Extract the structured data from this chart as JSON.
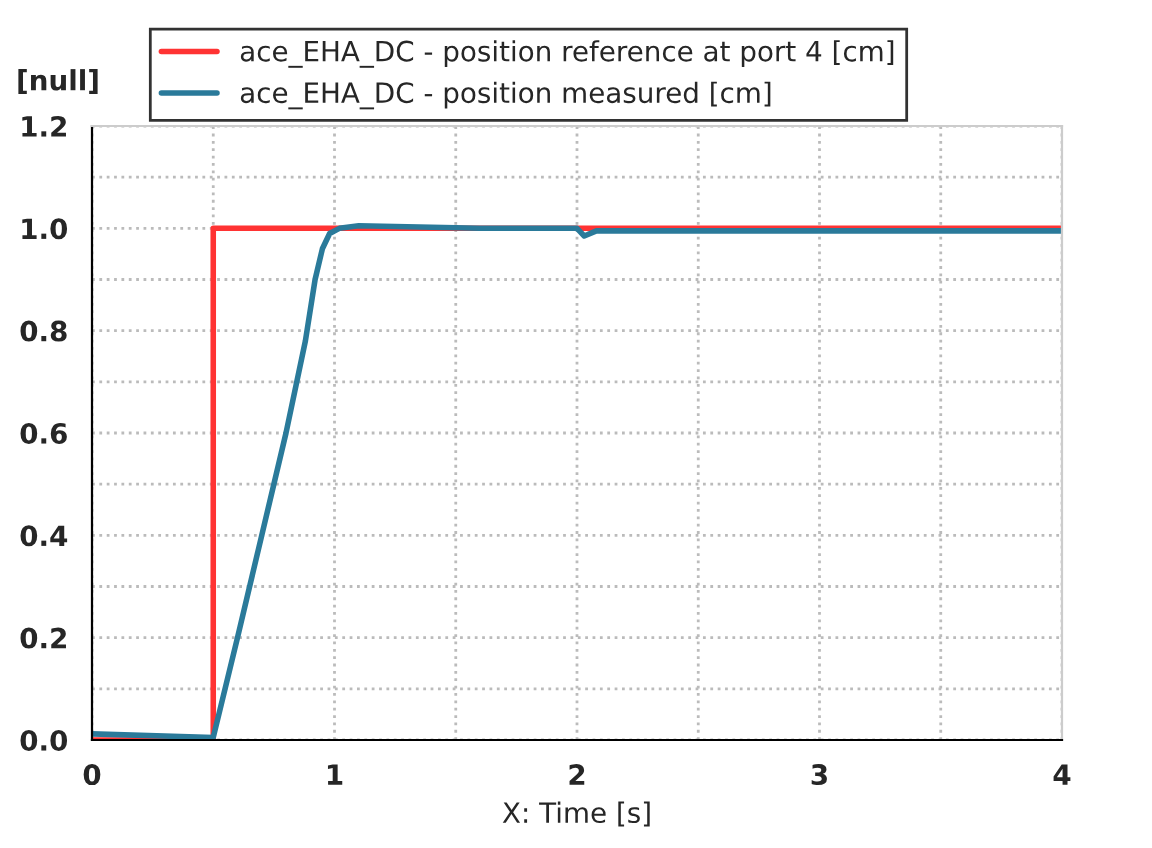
{
  "chart_data": {
    "type": "line",
    "xlabel": "X: Time [s]",
    "ylabel": "[null]",
    "xlim": [
      0,
      4
    ],
    "ylim": [
      0,
      1.2
    ],
    "xticks": [
      0,
      {
        "value": 0.5,
        "label": null
      },
      1,
      {
        "value": 1.5,
        "label": null
      },
      2,
      {
        "value": 2.5,
        "label": null
      },
      3,
      {
        "value": 3.5,
        "label": null
      },
      4
    ],
    "yticks": [
      {
        "value": 0,
        "label": "0.0"
      },
      {
        "value": 0.1,
        "label": null
      },
      {
        "value": 0.2,
        "label": "0.2"
      },
      {
        "value": 0.3,
        "label": null
      },
      {
        "value": 0.4,
        "label": "0.4"
      },
      {
        "value": 0.5,
        "label": null
      },
      {
        "value": 0.6,
        "label": "0.6"
      },
      {
        "value": 0.7,
        "label": null
      },
      {
        "value": 0.8,
        "label": "0.8"
      },
      {
        "value": 0.9,
        "label": null
      },
      {
        "value": 1.0,
        "label": "1.0"
      },
      {
        "value": 1.1,
        "label": null
      },
      {
        "value": 1.2,
        "label": "1.2"
      }
    ],
    "grid": true,
    "legend": "top",
    "line_style": "solid",
    "series": [
      {
        "name": "ace_EHA_DC - position reference at port 4 [cm]",
        "color": "#ff3333",
        "x": [
          0,
          0.5,
          0.5,
          4
        ],
        "values": [
          0,
          0,
          1,
          1
        ]
      },
      {
        "name": "ace_EHA_DC - position measured [cm]",
        "color": "#2a7a9a",
        "x": [
          0,
          0.5,
          0.6,
          0.7,
          0.8,
          0.88,
          0.92,
          0.95,
          0.98,
          1.02,
          1.1,
          1.3,
          1.6,
          2.0,
          2.03,
          2.08,
          2.2,
          3.0,
          4.0
        ],
        "values": [
          0.012,
          0.005,
          0.2,
          0.4,
          0.6,
          0.78,
          0.9,
          0.96,
          0.99,
          1.0,
          1.005,
          1.003,
          1.0,
          1.0,
          0.985,
          0.995,
          0.995,
          0.995,
          0.995
        ]
      }
    ]
  }
}
